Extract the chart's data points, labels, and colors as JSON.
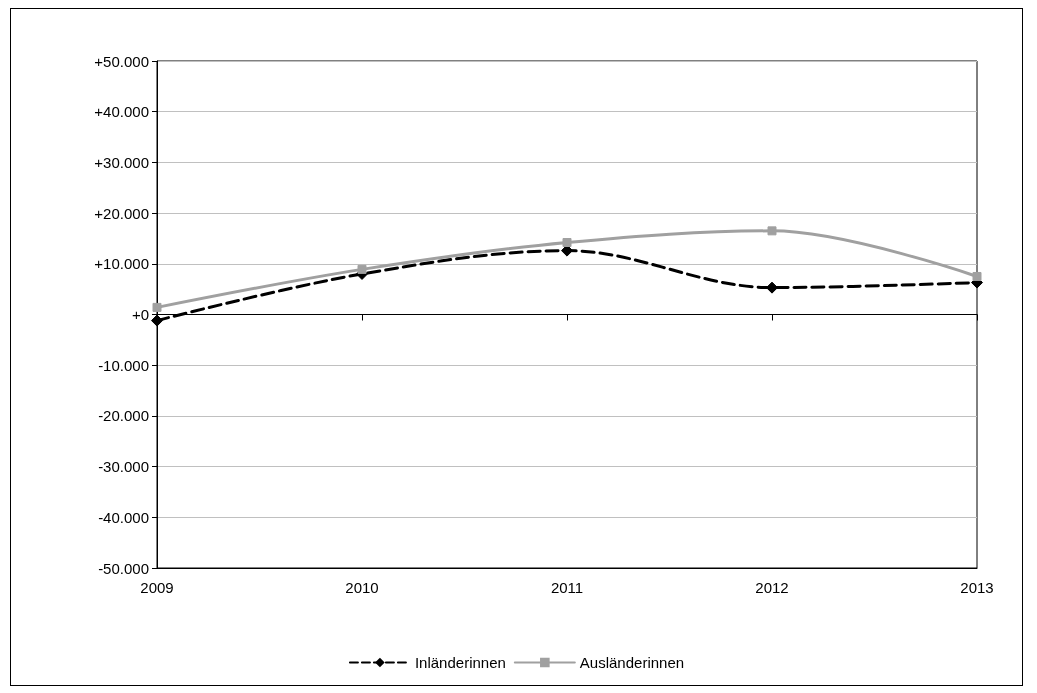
{
  "chart_data": {
    "type": "line",
    "categories": [
      "2009",
      "2010",
      "2011",
      "2012",
      "2013"
    ],
    "series": [
      {
        "name": "Inländerinnen",
        "color": "#000000",
        "marker": "diamond",
        "line_style": "dashed",
        "values": [
          -1200,
          8000,
          12600,
          5300,
          6300
        ]
      },
      {
        "name": "Ausländerinnen",
        "color": "#a0a0a0",
        "marker": "square",
        "line_style": "solid",
        "values": [
          1400,
          8900,
          14200,
          16500,
          7500
        ]
      }
    ],
    "ylim": [
      -50000,
      50000
    ],
    "yticks": [
      {
        "value": -50000,
        "label": "-50.000"
      },
      {
        "value": -40000,
        "label": "-40.000"
      },
      {
        "value": -30000,
        "label": "-30.000"
      },
      {
        "value": -20000,
        "label": "-20.000"
      },
      {
        "value": -10000,
        "label": "-10.000"
      },
      {
        "value": 0,
        "label": "+0"
      },
      {
        "value": 10000,
        "label": "+10.000"
      },
      {
        "value": 20000,
        "label": "+20.000"
      },
      {
        "value": 30000,
        "label": "+30.000"
      },
      {
        "value": 40000,
        "label": "+40.000"
      },
      {
        "value": 50000,
        "label": "+50.000"
      }
    ],
    "grid": "y",
    "legend": "bottom"
  }
}
